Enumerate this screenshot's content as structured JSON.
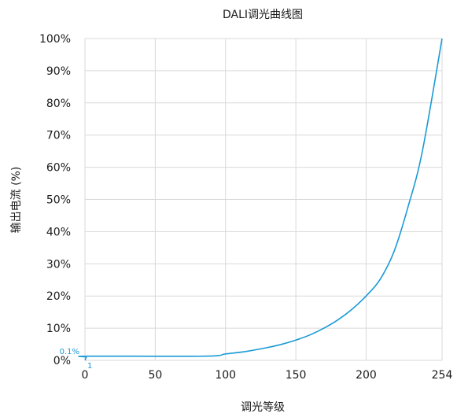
{
  "chart_data": {
    "type": "line",
    "title": "DALI调光曲线图",
    "xlabel": "调光等级",
    "ylabel": "输出电流 (%)",
    "xlim": [
      0,
      254
    ],
    "ylim": [
      0,
      100
    ],
    "x_ticks": [
      0,
      50,
      100,
      150,
      200,
      254
    ],
    "y_ticks": [
      0,
      10,
      20,
      30,
      40,
      50,
      60,
      70,
      80,
      90,
      100
    ],
    "y_tick_suffix": "%",
    "grid": true,
    "legend": "none",
    "series": [
      {
        "color": "#1a9ad6",
        "x": [
          0,
          1,
          2,
          85,
          100,
          115,
          130,
          140,
          150,
          160,
          170,
          180,
          190,
          200,
          210,
          220,
          230,
          240,
          254
        ],
        "y": [
          0,
          1,
          1.3,
          1.3,
          2.0,
          2.8,
          4.0,
          5.0,
          6.3,
          7.9,
          10.0,
          12.6,
          15.9,
          20.0,
          25.2,
          34.0,
          48.0,
          65.0,
          100
        ]
      }
    ],
    "annotations": [
      {
        "text": "0.1%"
      },
      {
        "text": "1"
      }
    ]
  }
}
